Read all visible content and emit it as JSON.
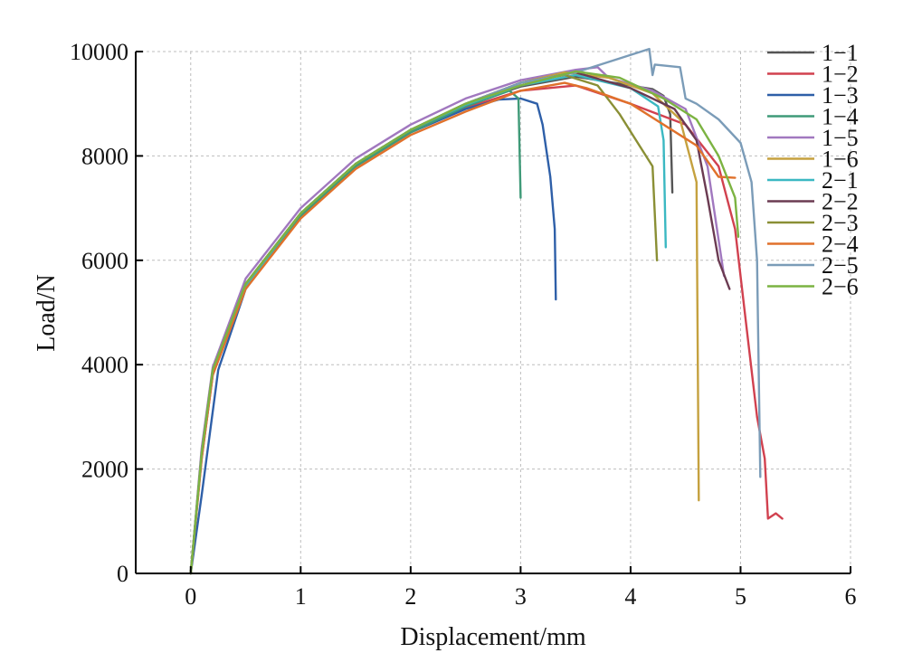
{
  "chart_data": {
    "type": "line",
    "xlabel": "Displacement/mm",
    "ylabel": "Load/N",
    "xlim": [
      -0.5,
      6
    ],
    "ylim": [
      0,
      10000
    ],
    "xticks": [
      0,
      1,
      2,
      3,
      4,
      5,
      6
    ],
    "yticks": [
      0,
      2000,
      4000,
      6000,
      8000,
      10000
    ],
    "grid": true,
    "legend_position": "right",
    "series": [
      {
        "name": "1−1",
        "color": "#555555",
        "points": [
          [
            0,
            0
          ],
          [
            0.1,
            2300
          ],
          [
            0.2,
            3850
          ],
          [
            0.5,
            5550
          ],
          [
            1,
            6900
          ],
          [
            1.5,
            7850
          ],
          [
            2,
            8500
          ],
          [
            2.5,
            8980
          ],
          [
            3,
            9330
          ],
          [
            3.5,
            9520
          ],
          [
            4,
            9350
          ],
          [
            4.2,
            9280
          ],
          [
            4.3,
            9150
          ],
          [
            4.36,
            8800
          ],
          [
            4.38,
            7300
          ]
        ]
      },
      {
        "name": "1−2",
        "color": "#d1414f",
        "points": [
          [
            0,
            0
          ],
          [
            0.1,
            2200
          ],
          [
            0.2,
            3800
          ],
          [
            0.5,
            5500
          ],
          [
            1,
            6850
          ],
          [
            1.5,
            7800
          ],
          [
            2,
            8450
          ],
          [
            2.5,
            8920
          ],
          [
            3,
            9250
          ],
          [
            3.5,
            9350
          ],
          [
            4,
            9000
          ],
          [
            4.5,
            8600
          ],
          [
            4.8,
            7800
          ],
          [
            4.95,
            6600
          ],
          [
            5.05,
            4800
          ],
          [
            5.15,
            3000
          ],
          [
            5.22,
            2200
          ],
          [
            5.25,
            1050
          ],
          [
            5.32,
            1150
          ],
          [
            5.38,
            1050
          ]
        ]
      },
      {
        "name": "1−3",
        "color": "#2e5fa8",
        "points": [
          [
            0,
            0
          ],
          [
            0.1,
            1500
          ],
          [
            0.25,
            3900
          ],
          [
            0.5,
            5450
          ],
          [
            1,
            6850
          ],
          [
            1.5,
            7800
          ],
          [
            2,
            8450
          ],
          [
            2.5,
            8900
          ],
          [
            2.8,
            9080
          ],
          [
            3,
            9100
          ],
          [
            3.15,
            9000
          ],
          [
            3.2,
            8600
          ],
          [
            3.27,
            7600
          ],
          [
            3.31,
            6600
          ],
          [
            3.32,
            5250
          ]
        ]
      },
      {
        "name": "1−4",
        "color": "#3f9a78",
        "points": [
          [
            0,
            0
          ],
          [
            0.1,
            2300
          ],
          [
            0.2,
            3850
          ],
          [
            0.5,
            5500
          ],
          [
            1,
            6850
          ],
          [
            1.5,
            7800
          ],
          [
            2,
            8450
          ],
          [
            2.5,
            8950
          ],
          [
            2.9,
            9250
          ],
          [
            2.98,
            9100
          ],
          [
            3,
            7200
          ]
        ]
      },
      {
        "name": "1−5",
        "color": "#a178bf",
        "points": [
          [
            0,
            0
          ],
          [
            0.1,
            2400
          ],
          [
            0.2,
            3950
          ],
          [
            0.5,
            5650
          ],
          [
            1,
            7000
          ],
          [
            1.5,
            7950
          ],
          [
            2,
            8600
          ],
          [
            2.5,
            9100
          ],
          [
            3,
            9450
          ],
          [
            3.5,
            9650
          ],
          [
            3.7,
            9700
          ],
          [
            3.8,
            9500
          ],
          [
            4.2,
            9250
          ],
          [
            4.5,
            8900
          ],
          [
            4.7,
            7800
          ],
          [
            4.85,
            5700
          ]
        ]
      },
      {
        "name": "1−6",
        "color": "#c5a13f",
        "points": [
          [
            0,
            0
          ],
          [
            0.1,
            2300
          ],
          [
            0.2,
            3900
          ],
          [
            0.5,
            5550
          ],
          [
            1,
            6900
          ],
          [
            1.5,
            7850
          ],
          [
            2,
            8500
          ],
          [
            2.5,
            9000
          ],
          [
            3,
            9400
          ],
          [
            3.4,
            9600
          ],
          [
            3.8,
            9500
          ],
          [
            4.2,
            9200
          ],
          [
            4.45,
            8700
          ],
          [
            4.6,
            7500
          ],
          [
            4.62,
            1400
          ]
        ]
      },
      {
        "name": "2−1",
        "color": "#3bb8c2",
        "points": [
          [
            0,
            0
          ],
          [
            0.1,
            2300
          ],
          [
            0.2,
            3850
          ],
          [
            0.5,
            5500
          ],
          [
            1,
            6900
          ],
          [
            1.5,
            7850
          ],
          [
            2,
            8500
          ],
          [
            2.5,
            8980
          ],
          [
            3,
            9350
          ],
          [
            3.5,
            9550
          ],
          [
            4,
            9300
          ],
          [
            4.25,
            8950
          ],
          [
            4.3,
            8300
          ],
          [
            4.32,
            6250
          ]
        ]
      },
      {
        "name": "2−2",
        "color": "#6b3b52",
        "points": [
          [
            0,
            0
          ],
          [
            0.1,
            2300
          ],
          [
            0.2,
            3900
          ],
          [
            0.5,
            5550
          ],
          [
            1,
            6900
          ],
          [
            1.5,
            7850
          ],
          [
            2,
            8500
          ],
          [
            2.5,
            9000
          ],
          [
            3,
            9400
          ],
          [
            3.5,
            9600
          ],
          [
            4,
            9300
          ],
          [
            4.4,
            8900
          ],
          [
            4.6,
            8300
          ],
          [
            4.7,
            7200
          ],
          [
            4.8,
            6000
          ],
          [
            4.9,
            5450
          ]
        ]
      },
      {
        "name": "2−3",
        "color": "#8a8f35",
        "points": [
          [
            0,
            0
          ],
          [
            0.1,
            2300
          ],
          [
            0.2,
            3850
          ],
          [
            0.5,
            5550
          ],
          [
            1,
            6900
          ],
          [
            1.5,
            7850
          ],
          [
            2,
            8500
          ],
          [
            2.5,
            9000
          ],
          [
            3,
            9400
          ],
          [
            3.4,
            9550
          ],
          [
            3.7,
            9350
          ],
          [
            3.9,
            8800
          ],
          [
            4.05,
            8300
          ],
          [
            4.2,
            7800
          ],
          [
            4.24,
            6000
          ]
        ]
      },
      {
        "name": "2−4",
        "color": "#e0712b",
        "points": [
          [
            0,
            0
          ],
          [
            0.1,
            2200
          ],
          [
            0.2,
            3800
          ],
          [
            0.5,
            5450
          ],
          [
            1,
            6800
          ],
          [
            1.5,
            7750
          ],
          [
            2,
            8400
          ],
          [
            2.5,
            8850
          ],
          [
            3,
            9250
          ],
          [
            3.4,
            9400
          ],
          [
            3.6,
            9300
          ],
          [
            4,
            9000
          ],
          [
            4.3,
            8600
          ],
          [
            4.6,
            8200
          ],
          [
            4.8,
            7600
          ],
          [
            4.95,
            7580
          ]
        ]
      },
      {
        "name": "2−5",
        "color": "#7b9cb8",
        "points": [
          [
            0,
            0
          ],
          [
            0.1,
            2300
          ],
          [
            0.2,
            3900
          ],
          [
            0.5,
            5550
          ],
          [
            1,
            6900
          ],
          [
            1.5,
            7850
          ],
          [
            2,
            8500
          ],
          [
            2.5,
            9000
          ],
          [
            3,
            9400
          ],
          [
            3.5,
            9600
          ],
          [
            3.8,
            9800
          ],
          [
            4.17,
            10050
          ],
          [
            4.2,
            9550
          ],
          [
            4.22,
            9750
          ],
          [
            4.45,
            9700
          ],
          [
            4.5,
            9100
          ],
          [
            4.6,
            9000
          ],
          [
            4.8,
            8700
          ],
          [
            5,
            8250
          ],
          [
            5.1,
            7500
          ],
          [
            5.15,
            6000
          ],
          [
            5.18,
            1850
          ]
        ]
      },
      {
        "name": "2−6",
        "color": "#7cb342",
        "points": [
          [
            0,
            0
          ],
          [
            0.1,
            2300
          ],
          [
            0.2,
            3900
          ],
          [
            0.5,
            5550
          ],
          [
            1,
            6900
          ],
          [
            1.5,
            7850
          ],
          [
            2,
            8500
          ],
          [
            2.5,
            9000
          ],
          [
            3,
            9350
          ],
          [
            3.5,
            9620
          ],
          [
            3.9,
            9500
          ],
          [
            4.3,
            9100
          ],
          [
            4.6,
            8700
          ],
          [
            4.8,
            8000
          ],
          [
            4.95,
            7200
          ],
          [
            4.98,
            6450
          ]
        ]
      }
    ]
  }
}
